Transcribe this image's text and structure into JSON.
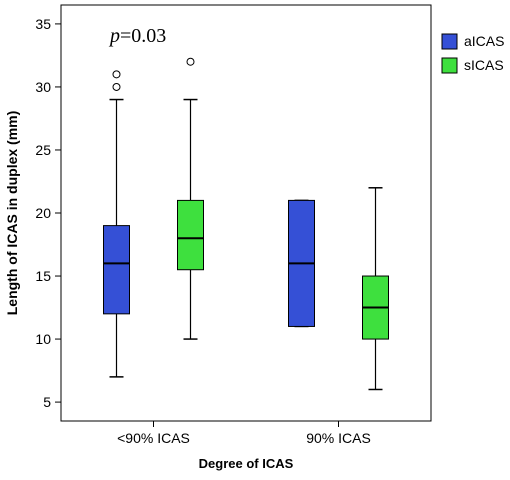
{
  "chart_data": {
    "type": "box",
    "title": "",
    "xlabel": "Degree of ICAS",
    "ylabel": "Length of ICAS in duplex (mm)",
    "ylim": [
      3.5,
      36.5
    ],
    "yticks": [
      5,
      10,
      15,
      20,
      25,
      30,
      35
    ],
    "categories": [
      "<90% ICAS",
      "90% ICAS"
    ],
    "annotation": {
      "p_symbol": "p",
      "p_value": "=0.03"
    },
    "legend_position": "top-right",
    "series": [
      {
        "name": "aICAS",
        "color": "#3550d6",
        "boxes": [
          {
            "category": "<90% ICAS",
            "min": 7,
            "q1": 12,
            "median": 16,
            "q3": 19,
            "max": 29,
            "outliers": [
              30,
              31
            ]
          },
          {
            "category": "90% ICAS",
            "min": 11,
            "q1": 11,
            "median": 16,
            "q3": 21,
            "max": 21,
            "outliers": []
          }
        ]
      },
      {
        "name": "sICAS",
        "color": "#3ee03e",
        "boxes": [
          {
            "category": "<90% ICAS",
            "min": 10,
            "q1": 15.5,
            "median": 18,
            "q3": 21,
            "max": 29,
            "outliers": [
              32
            ]
          },
          {
            "category": "90% ICAS",
            "min": 6,
            "q1": 10,
            "median": 12.5,
            "q3": 15,
            "max": 22,
            "outliers": []
          }
        ]
      }
    ]
  }
}
